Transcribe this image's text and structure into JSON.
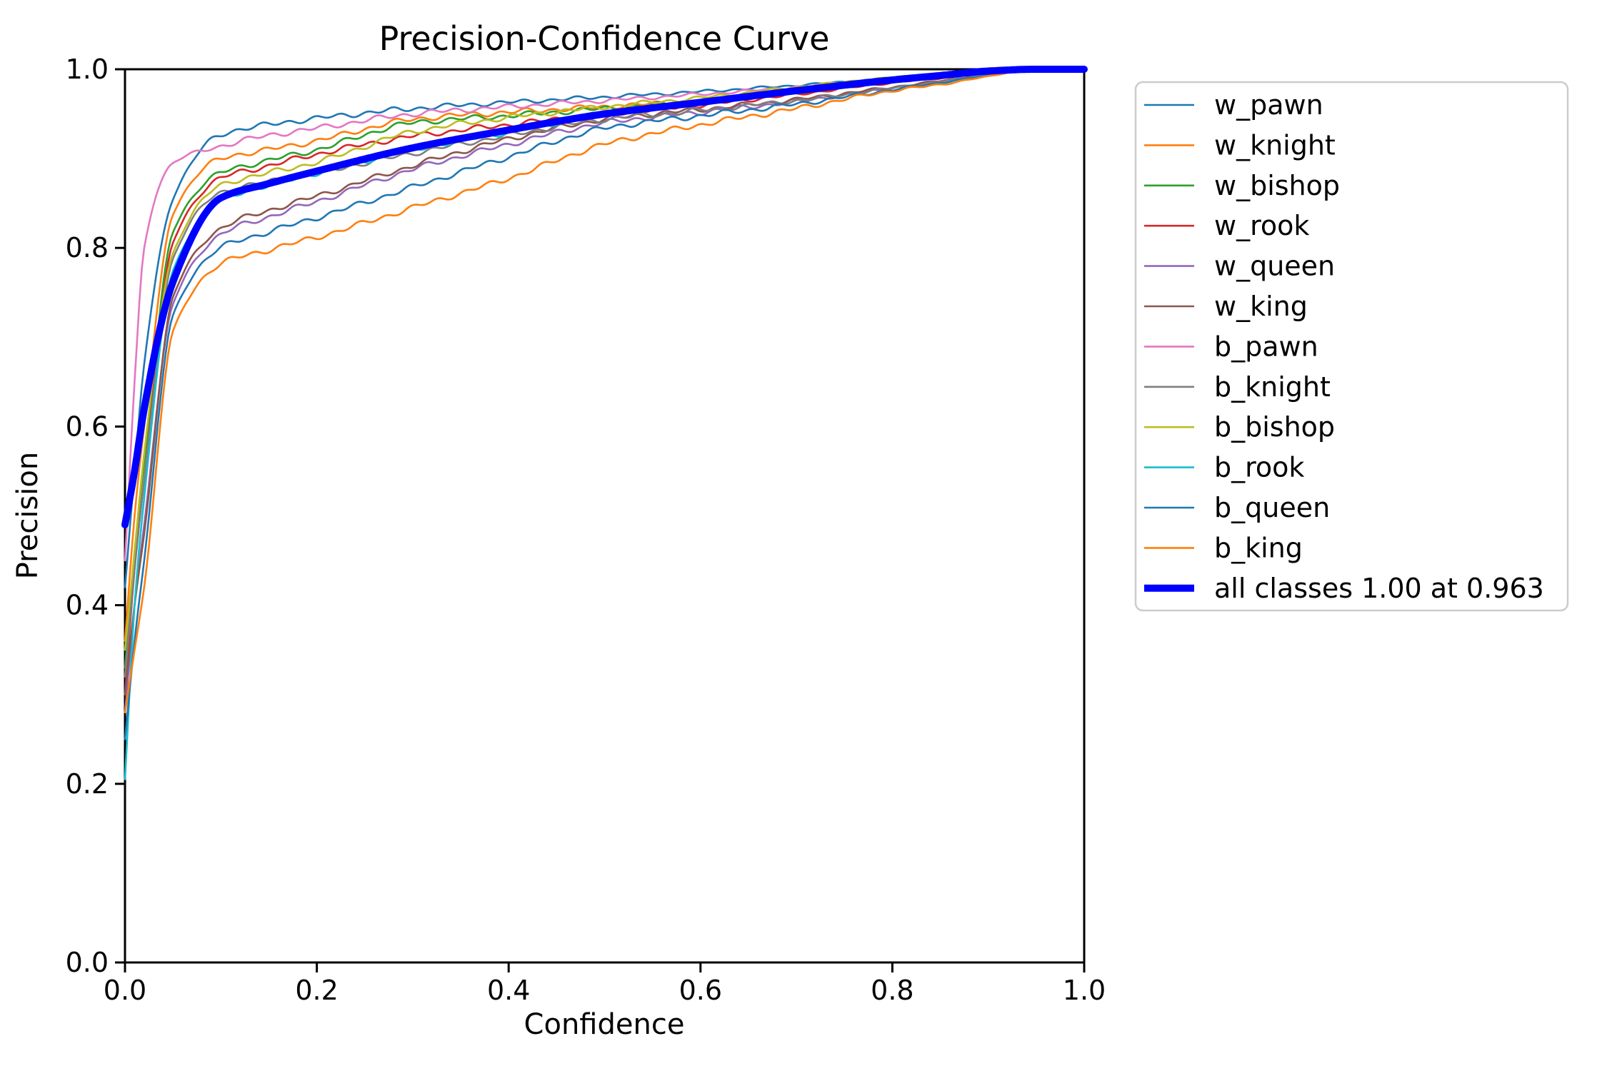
{
  "chart_data": {
    "type": "line",
    "title": "Precision-Confidence Curve",
    "xlabel": "Confidence",
    "ylabel": "Precision",
    "xlim": [
      0.0,
      1.0
    ],
    "ylim": [
      0.0,
      1.0
    ],
    "grid": false,
    "legend_position": "outside-right",
    "xticks": [
      "0.0",
      "0.2",
      "0.4",
      "0.6",
      "0.8",
      "1.0"
    ],
    "yticks": [
      "0.0",
      "0.2",
      "0.4",
      "0.6",
      "0.8",
      "1.0"
    ],
    "x": [
      0,
      0.01,
      0.02,
      0.05,
      0.1,
      0.15,
      0.2,
      0.3,
      0.4,
      0.5,
      0.6,
      0.7,
      0.8,
      0.85,
      0.9,
      0.95,
      1.0
    ],
    "series": [
      {
        "name": "w_pawn",
        "color": "#1f77b4",
        "thick": false,
        "values": [
          0.42,
          0.55,
          0.67,
          0.855,
          0.927,
          0.938,
          0.945,
          0.956,
          0.963,
          0.969,
          0.975,
          0.982,
          0.99,
          0.994,
          0.998,
          1.0,
          1.0
        ]
      },
      {
        "name": "w_knight",
        "color": "#ff7f0e",
        "thick": false,
        "values": [
          0.36,
          0.5,
          0.6,
          0.838,
          0.9,
          0.91,
          0.92,
          0.944,
          0.952,
          0.958,
          0.965,
          0.974,
          0.986,
          0.991,
          0.996,
          1.0,
          1.0
        ]
      },
      {
        "name": "w_bishop",
        "color": "#2ca02c",
        "thick": false,
        "values": [
          0.33,
          0.46,
          0.56,
          0.818,
          0.884,
          0.898,
          0.91,
          0.94,
          0.948,
          0.956,
          0.964,
          0.974,
          0.987,
          0.992,
          0.997,
          1.0,
          1.0
        ]
      },
      {
        "name": "w_rook",
        "color": "#d62728",
        "thick": false,
        "values": [
          0.3,
          0.44,
          0.54,
          0.806,
          0.878,
          0.892,
          0.905,
          0.925,
          0.938,
          0.95,
          0.96,
          0.972,
          0.985,
          0.99,
          0.996,
          1.0,
          1.0
        ]
      },
      {
        "name": "w_queen",
        "color": "#9467bd",
        "thick": false,
        "values": [
          0.28,
          0.4,
          0.49,
          0.737,
          0.815,
          0.835,
          0.852,
          0.888,
          0.916,
          0.94,
          0.952,
          0.964,
          0.979,
          0.986,
          0.994,
          1.0,
          1.0
        ]
      },
      {
        "name": "w_king",
        "color": "#8c564b",
        "thick": false,
        "values": [
          0.3,
          0.4,
          0.48,
          0.745,
          0.822,
          0.842,
          0.858,
          0.892,
          0.922,
          0.944,
          0.955,
          0.966,
          0.98,
          0.987,
          0.995,
          1.0,
          1.0
        ]
      },
      {
        "name": "b_pawn",
        "color": "#e377c2",
        "thick": false,
        "values": [
          0.45,
          0.65,
          0.8,
          0.895,
          0.914,
          0.926,
          0.934,
          0.95,
          0.958,
          0.965,
          0.972,
          0.98,
          0.99,
          0.994,
          0.998,
          1.0,
          1.0
        ]
      },
      {
        "name": "b_knight",
        "color": "#7f7f7f",
        "thick": false,
        "values": [
          0.32,
          0.44,
          0.54,
          0.788,
          0.862,
          0.874,
          0.884,
          0.906,
          0.926,
          0.944,
          0.954,
          0.965,
          0.979,
          0.986,
          0.994,
          1.0,
          1.0
        ]
      },
      {
        "name": "b_bishop",
        "color": "#bcbd22",
        "thick": false,
        "values": [
          0.35,
          0.46,
          0.57,
          0.794,
          0.87,
          0.884,
          0.896,
          0.93,
          0.946,
          0.958,
          0.968,
          0.98,
          0.991,
          0.995,
          0.998,
          1.0,
          1.0
        ]
      },
      {
        "name": "b_rook",
        "color": "#17becf",
        "thick": false,
        "values": [
          0.205,
          0.4,
          0.52,
          0.774,
          0.854,
          0.87,
          0.884,
          0.91,
          0.93,
          0.95,
          0.963,
          0.976,
          0.988,
          0.993,
          0.997,
          1.0,
          1.0
        ]
      },
      {
        "name": "b_queen",
        "color": "#1f77b4",
        "thick": false,
        "values": [
          0.25,
          0.36,
          0.45,
          0.724,
          0.8,
          0.818,
          0.834,
          0.868,
          0.902,
          0.934,
          0.948,
          0.961,
          0.977,
          0.985,
          0.993,
          1.0,
          1.0
        ]
      },
      {
        "name": "b_king",
        "color": "#ff7f0e",
        "thick": false,
        "values": [
          0.28,
          0.35,
          0.42,
          0.706,
          0.782,
          0.798,
          0.812,
          0.845,
          0.878,
          0.916,
          0.938,
          0.956,
          0.976,
          0.983,
          0.992,
          1.0,
          1.0
        ]
      },
      {
        "name": "all classes 1.00 at 0.963",
        "color": "#0000ff",
        "thick": true,
        "values": [
          0.49,
          0.55,
          0.62,
          0.762,
          0.856,
          0.872,
          0.886,
          0.912,
          0.932,
          0.95,
          0.963,
          0.976,
          0.988,
          0.993,
          0.998,
          1.0,
          1.0
        ]
      }
    ]
  }
}
